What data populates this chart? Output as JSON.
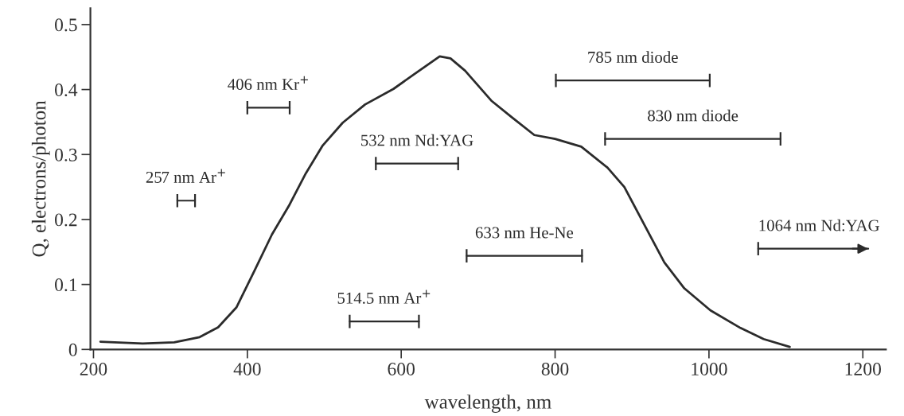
{
  "chart_data": {
    "type": "line",
    "xlabel": "wavelength, nm",
    "ylabel": "Q, electrons/photon",
    "xlim": [
      196,
      1230
    ],
    "ylim": [
      0,
      0.525
    ],
    "xticks": [
      200,
      400,
      600,
      800,
      1000,
      1200
    ],
    "yticks": [
      0,
      0.1,
      0.2,
      0.3,
      0.4,
      0.5
    ],
    "grid": false,
    "legend": false,
    "line_style": "solid",
    "marker": "none",
    "series": [
      {
        "color": "#2b2b2b",
        "x": [
          209,
          264,
          305,
          338,
          362,
          386,
          410,
          432,
          454,
          476,
          498,
          524,
          553,
          590,
          616,
          650,
          664,
          683,
          717,
          744,
          773,
          800,
          834,
          868,
          890,
          920,
          942,
          968,
          1002,
          1041,
          1071,
          1105
        ],
        "values": [
          0.012,
          0.009,
          0.011,
          0.019,
          0.034,
          0.065,
          0.123,
          0.177,
          0.221,
          0.271,
          0.314,
          0.349,
          0.377,
          0.401,
          0.423,
          0.451,
          0.448,
          0.429,
          0.383,
          0.357,
          0.33,
          0.324,
          0.312,
          0.28,
          0.25,
          0.183,
          0.134,
          0.094,
          0.06,
          0.033,
          0.016,
          0.004
        ]
      },
      {
        "name": "257 nm Ar$^{+}$",
        "color": "#2b2b2b",
        "x": [
          309,
          332
        ],
        "values": [
          0.229,
          0.229
        ]
      },
      {
        "name": "406 nm Kr$^{+}$",
        "color": "#2b2b2b",
        "x": [
          400,
          455
        ],
        "values": [
          0.372,
          0.372
        ]
      },
      {
        "name": "532 nm Nd:YAG",
        "color": "#2b2b2b",
        "x": [
          567,
          674
        ],
        "values": [
          0.286,
          0.286
        ]
      },
      {
        "name": "514.5 nm Ar$^{+}$",
        "color": "#2b2b2b",
        "x": [
          533,
          623
        ],
        "values": [
          0.043,
          0.043
        ]
      },
      {
        "name": "633 nm He-Ne",
        "color": "#2b2b2b",
        "x": [
          685,
          835
        ],
        "values": [
          0.144,
          0.144
        ]
      },
      {
        "name": "785 nm diode",
        "color": "#2b2b2b",
        "x": [
          801,
          1001
        ],
        "values": [
          0.414,
          0.414
        ]
      },
      {
        "name": "830 nm diode",
        "color": "#2b2b2b",
        "x": [
          865,
          1093
        ],
        "values": [
          0.324,
          0.324
        ]
      },
      {
        "name": "1064 nm Nd:YAG",
        "color": "#2b2b2b",
        "x": [
          1064,
          1207
        ],
        "values": [
          0.155,
          0.155
        ]
      }
    ]
  }
}
